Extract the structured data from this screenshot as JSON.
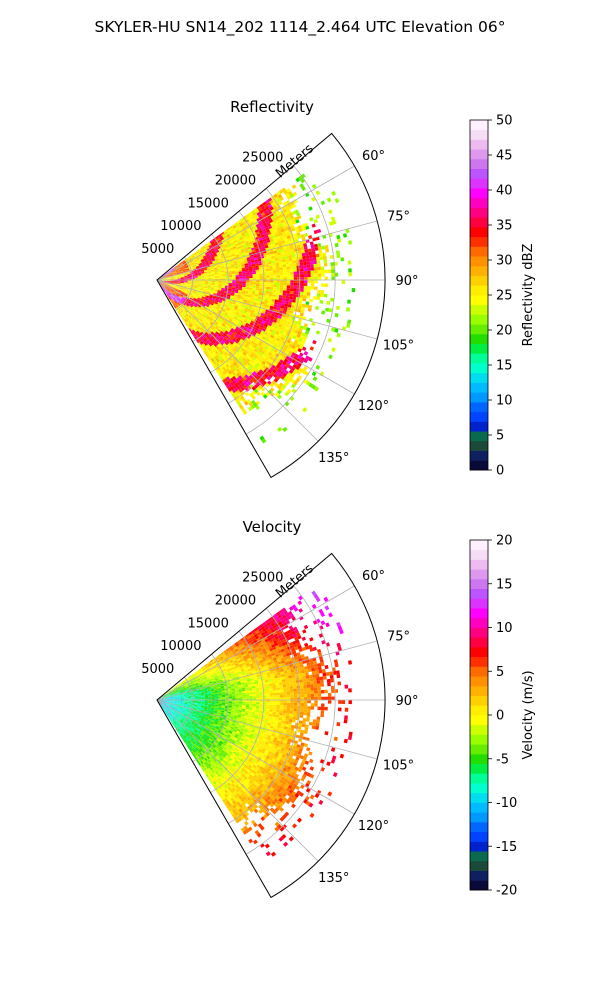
{
  "figure_title": "SKYLER-HU  SN14_202  1114_2.464 UTC Elevation 06°",
  "chart_data": [
    {
      "type": "heatmap",
      "title": "Reflectivity",
      "projection": "polar-sector",
      "azimuth_range_deg": [
        50,
        150
      ],
      "range_max_m": 32000,
      "radial_label": "Meters",
      "radial_ticks": [
        5000,
        10000,
        15000,
        20000,
        25000
      ],
      "radial_tick_labels": [
        "5000",
        "10000",
        "15000",
        "20000",
        "25000"
      ],
      "angle_ticks_deg": [
        60,
        75,
        90,
        105,
        120,
        135
      ],
      "angle_tick_labels": [
        "60°",
        "75°",
        "90°",
        "105°",
        "120°",
        "135°"
      ],
      "grid": true,
      "colorbar": {
        "label": "Reflectivity dBZ",
        "min": 0,
        "max": 50,
        "ticks": [
          0,
          5,
          10,
          15,
          20,
          25,
          30,
          35,
          40,
          45,
          50
        ],
        "tick_labels": [
          "0",
          "5",
          "10",
          "15",
          "20",
          "25",
          "30",
          "35",
          "40",
          "45",
          "50"
        ],
        "colors": [
          "#0a0a3a",
          "#0f2060",
          "#1b4a3a",
          "#0a6a50",
          "#0022cc",
          "#0044ff",
          "#0066ff",
          "#0099ff",
          "#00bbff",
          "#00ddee",
          "#00ffcc",
          "#00ff99",
          "#00ee44",
          "#22dd00",
          "#66ee00",
          "#99ff00",
          "#ccff00",
          "#ffff00",
          "#ffee00",
          "#ffd000",
          "#ffb000",
          "#ff9000",
          "#ff6a00",
          "#ff3000",
          "#ff0000",
          "#ff0040",
          "#ff0080",
          "#ff00c0",
          "#ff00ff",
          "#dd33ff",
          "#bb55ff",
          "#cc77ee",
          "#dd99ee",
          "#eebbf0",
          "#f6ddf6",
          "#fff0ff"
        ]
      },
      "data_summary": "Reflectivity values mostly 20–30 dBZ with embedded 30–38 dBZ bands; sparse 18–22 dBZ speckle near the far edge"
    },
    {
      "type": "heatmap",
      "title": "Velocity",
      "projection": "polar-sector",
      "azimuth_range_deg": [
        50,
        150
      ],
      "range_max_m": 32000,
      "radial_label": "Meters",
      "radial_ticks": [
        5000,
        10000,
        15000,
        20000,
        25000
      ],
      "radial_tick_labels": [
        "5000",
        "10000",
        "15000",
        "20000",
        "25000"
      ],
      "angle_ticks_deg": [
        60,
        75,
        90,
        105,
        120,
        135
      ],
      "angle_tick_labels": [
        "60°",
        "75°",
        "90°",
        "105°",
        "120°",
        "135°"
      ],
      "grid": true,
      "colorbar": {
        "label": "Velocity (m/s)",
        "min": -20,
        "max": 20,
        "ticks": [
          -20,
          -15,
          -10,
          -5,
          0,
          5,
          10,
          15,
          20
        ],
        "tick_labels": [
          "-20",
          "-15",
          "-10",
          "-5",
          "0",
          "5",
          "10",
          "15",
          "20"
        ],
        "colors": [
          "#0a0a3a",
          "#0f2060",
          "#1b4a3a",
          "#0a6a50",
          "#0022cc",
          "#0044ff",
          "#0066ff",
          "#0099ff",
          "#00bbff",
          "#00ddee",
          "#00ffcc",
          "#00ff99",
          "#00ee44",
          "#22dd00",
          "#66ee00",
          "#99ff00",
          "#ccff00",
          "#ffff00",
          "#ffee00",
          "#ffd000",
          "#ffb000",
          "#ff9000",
          "#ff6a00",
          "#ff3000",
          "#ff0000",
          "#ff0040",
          "#ff0080",
          "#ff00c0",
          "#ff00ff",
          "#dd33ff",
          "#bb55ff",
          "#cc77ee",
          "#dd99ee",
          "#eebbf0",
          "#f6ddf6",
          "#fff0ff"
        ]
      },
      "data_summary": "Velocity about -12 m/s near the radar increasing to ~0 m/s mid-range and 5–12 m/s at far range, strongest toward the north-east"
    }
  ]
}
